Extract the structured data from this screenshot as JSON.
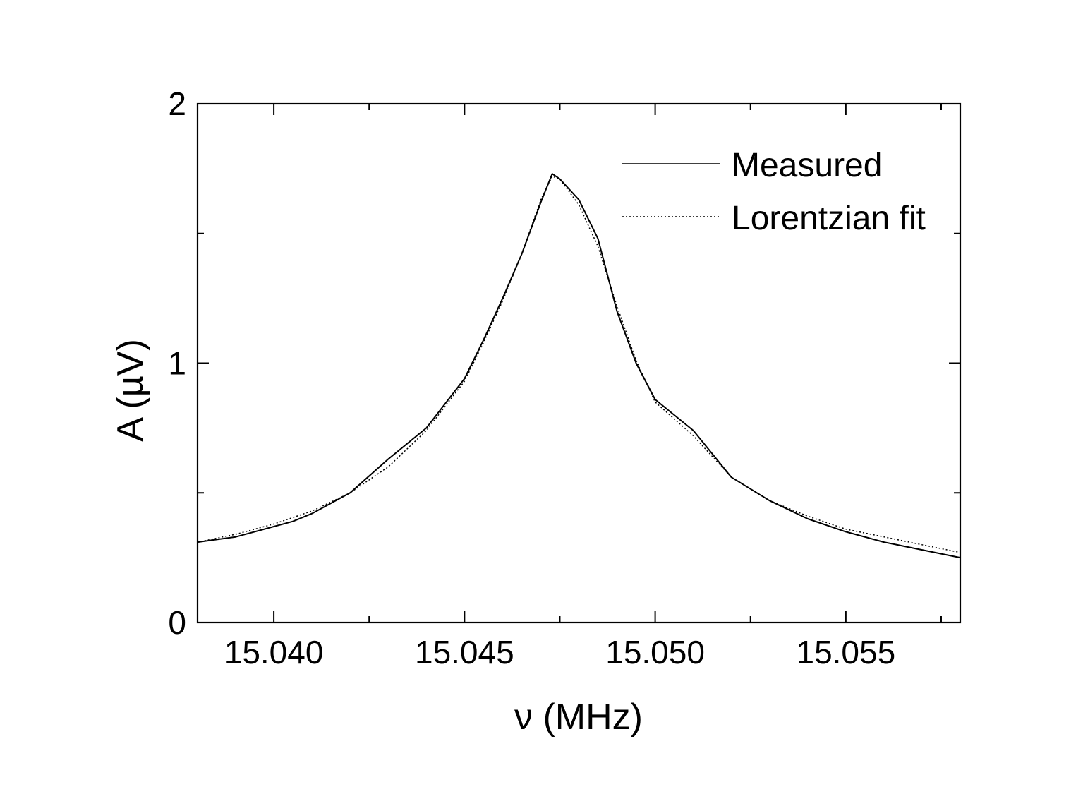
{
  "chart_data": {
    "type": "line",
    "xlabel": "ν (MHz)",
    "ylabel": "A (µV)",
    "xlim": [
      15.038,
      15.058
    ],
    "ylim": [
      0,
      2
    ],
    "x_ticks": [
      15.04,
      15.045,
      15.05,
      15.055
    ],
    "x_tick_labels": [
      "15.040",
      "15.045",
      "15.050",
      "15.055"
    ],
    "y_ticks": [
      0,
      1,
      2
    ],
    "y_tick_labels": [
      "0",
      "1",
      "2"
    ],
    "grid": false,
    "legend_position": "top-right",
    "colors": {
      "line": "#000000",
      "frame": "#000000",
      "background": "#ffffff"
    },
    "series": [
      {
        "name": "Measured",
        "style": "solid",
        "x": [
          15.038,
          15.039,
          15.04,
          15.0405,
          15.041,
          15.042,
          15.043,
          15.044,
          15.045,
          15.0455,
          15.046,
          15.0465,
          15.047,
          15.0473,
          15.0475,
          15.048,
          15.0485,
          15.049,
          15.0495,
          15.05,
          15.051,
          15.052,
          15.053,
          15.054,
          15.055,
          15.056,
          15.057,
          15.058
        ],
        "y": [
          0.31,
          0.33,
          0.37,
          0.39,
          0.42,
          0.5,
          0.63,
          0.75,
          0.94,
          1.09,
          1.25,
          1.42,
          1.62,
          1.73,
          1.71,
          1.63,
          1.48,
          1.2,
          1.0,
          0.86,
          0.74,
          0.56,
          0.47,
          0.4,
          0.35,
          0.31,
          0.28,
          0.25
        ]
      },
      {
        "name": "Lorentzian fit",
        "style": "dotted",
        "x": [
          15.038,
          15.039,
          15.04,
          15.041,
          15.042,
          15.043,
          15.044,
          15.045,
          15.0455,
          15.046,
          15.0465,
          15.047,
          15.0473,
          15.0475,
          15.048,
          15.0485,
          15.049,
          15.0495,
          15.05,
          15.051,
          15.052,
          15.053,
          15.054,
          15.055,
          15.056,
          15.057,
          15.058
        ],
        "y": [
          0.31,
          0.34,
          0.38,
          0.43,
          0.5,
          0.6,
          0.74,
          0.93,
          1.08,
          1.24,
          1.42,
          1.63,
          1.72,
          1.71,
          1.61,
          1.45,
          1.22,
          1.01,
          0.85,
          0.72,
          0.56,
          0.47,
          0.41,
          0.36,
          0.33,
          0.3,
          0.27
        ]
      }
    ]
  }
}
